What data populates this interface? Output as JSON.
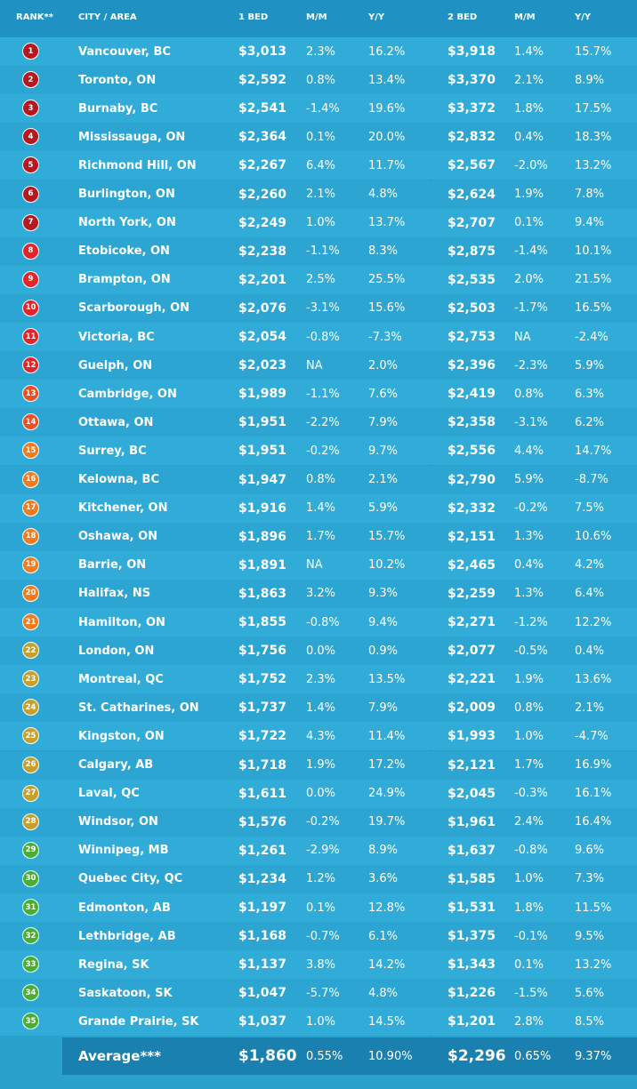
{
  "table": {
    "header": [
      "RANK**",
      "CITY / AREA",
      "1 BED",
      "M/M",
      "Y/Y",
      "2 BED",
      "M/M",
      "Y/Y"
    ],
    "rows": [
      [
        "1",
        "Vancouver, BC",
        "$3,013",
        "2.3%",
        "16.2%",
        "$3,918",
        "1.4%",
        "15.7%"
      ],
      [
        "2",
        "Toronto, ON",
        "$2,592",
        "0.8%",
        "13.4%",
        "$3,370",
        "2.1%",
        "8.9%"
      ],
      [
        "3",
        "Burnaby, BC",
        "$2,541",
        "-1.4%",
        "19.6%",
        "$3,372",
        "1.8%",
        "17.5%"
      ],
      [
        "4",
        "Mississauga, ON",
        "$2,364",
        "0.1%",
        "20.0%",
        "$2,832",
        "0.4%",
        "18.3%"
      ],
      [
        "5",
        "Richmond Hill, ON",
        "$2,267",
        "6.4%",
        "11.7%",
        "$2,567",
        "-2.0%",
        "13.2%"
      ],
      [
        "6",
        "Burlington, ON",
        "$2,260",
        "2.1%",
        "4.8%",
        "$2,624",
        "1.9%",
        "7.8%"
      ],
      [
        "7",
        "North York, ON",
        "$2,249",
        "1.0%",
        "13.7%",
        "$2,707",
        "0.1%",
        "9.4%"
      ],
      [
        "8",
        "Etobicoke, ON",
        "$2,238",
        "-1.1%",
        "8.3%",
        "$2,875",
        "-1.4%",
        "10.1%"
      ],
      [
        "9",
        "Brampton, ON",
        "$2,201",
        "2.5%",
        "25.5%",
        "$2,535",
        "2.0%",
        "21.5%"
      ],
      [
        "10",
        "Scarborough, ON",
        "$2,076",
        "-3.1%",
        "15.6%",
        "$2,503",
        "-1.7%",
        "16.5%"
      ],
      [
        "11",
        "Victoria, BC",
        "$2,054",
        "-0.8%",
        "-7.3%",
        "$2,753",
        "NA",
        "-2.4%"
      ],
      [
        "12",
        "Guelph, ON",
        "$2,023",
        "NA",
        "2.0%",
        "$2,396",
        "-2.3%",
        "5.9%"
      ],
      [
        "13",
        "Cambridge, ON",
        "$1,989",
        "-1.1%",
        "7.6%",
        "$2,419",
        "0.8%",
        "6.3%"
      ],
      [
        "14",
        "Ottawa, ON",
        "$1,951",
        "-2.2%",
        "7.9%",
        "$2,358",
        "-3.1%",
        "6.2%"
      ],
      [
        "15",
        "Surrey, BC",
        "$1,951",
        "-0.2%",
        "9.7%",
        "$2,556",
        "4.4%",
        "14.7%"
      ],
      [
        "16",
        "Kelowna, BC",
        "$1,947",
        "0.8%",
        "2.1%",
        "$2,790",
        "5.9%",
        "-8.7%"
      ],
      [
        "17",
        "Kitchener, ON",
        "$1,916",
        "1.4%",
        "5.9%",
        "$2,332",
        "-0.2%",
        "7.5%"
      ],
      [
        "18",
        "Oshawa, ON",
        "$1,896",
        "1.7%",
        "15.7%",
        "$2,151",
        "1.3%",
        "10.6%"
      ],
      [
        "19",
        "Barrie, ON",
        "$1,891",
        "NA",
        "10.2%",
        "$2,465",
        "0.4%",
        "4.2%"
      ],
      [
        "20",
        "Halifax, NS",
        "$1,863",
        "3.2%",
        "9.3%",
        "$2,259",
        "1.3%",
        "6.4%"
      ],
      [
        "21",
        "Hamilton, ON",
        "$1,855",
        "-0.8%",
        "9.4%",
        "$2,271",
        "-1.2%",
        "12.2%"
      ],
      [
        "22",
        "London, ON",
        "$1,756",
        "0.0%",
        "0.9%",
        "$2,077",
        "-0.5%",
        "0.4%"
      ],
      [
        "23",
        "Montreal, QC",
        "$1,752",
        "2.3%",
        "13.5%",
        "$2,221",
        "1.9%",
        "13.6%"
      ],
      [
        "24",
        "St. Catharines, ON",
        "$1,737",
        "1.4%",
        "7.9%",
        "$2,009",
        "0.8%",
        "2.1%"
      ],
      [
        "25",
        "Kingston, ON",
        "$1,722",
        "4.3%",
        "11.4%",
        "$1,993",
        "1.0%",
        "-4.7%"
      ],
      [
        "26",
        "Calgary, AB",
        "$1,718",
        "1.9%",
        "17.2%",
        "$2,121",
        "1.7%",
        "16.9%"
      ],
      [
        "27",
        "Laval, QC",
        "$1,611",
        "0.0%",
        "24.9%",
        "$2,045",
        "-0.3%",
        "16.1%"
      ],
      [
        "28",
        "Windsor, ON",
        "$1,576",
        "-0.2%",
        "19.7%",
        "$1,961",
        "2.4%",
        "16.4%"
      ],
      [
        "29",
        "Winnipeg, MB",
        "$1,261",
        "-2.9%",
        "8.9%",
        "$1,637",
        "-0.8%",
        "9.6%"
      ],
      [
        "30",
        "Quebec City, QC",
        "$1,234",
        "1.2%",
        "3.6%",
        "$1,585",
        "1.0%",
        "7.3%"
      ],
      [
        "31",
        "Edmonton, AB",
        "$1,197",
        "0.1%",
        "12.8%",
        "$1,531",
        "1.8%",
        "11.5%"
      ],
      [
        "32",
        "Lethbridge, AB",
        "$1,168",
        "-0.7%",
        "6.1%",
        "$1,375",
        "-0.1%",
        "9.5%"
      ],
      [
        "33",
        "Regina, SK",
        "$1,137",
        "3.8%",
        "14.2%",
        "$1,343",
        "0.1%",
        "13.2%"
      ],
      [
        "34",
        "Saskatoon, SK",
        "$1,047",
        "-5.7%",
        "4.8%",
        "$1,226",
        "-1.5%",
        "5.6%"
      ],
      [
        "35",
        "Grande Prairie, SK",
        "$1,037",
        "1.0%",
        "14.5%",
        "$1,201",
        "2.8%",
        "8.5%"
      ]
    ],
    "average": [
      "Average***",
      "$1,860",
      "0.55%",
      "10.90%",
      "$2,296",
      "0.65%",
      "9.37%"
    ]
  }
}
